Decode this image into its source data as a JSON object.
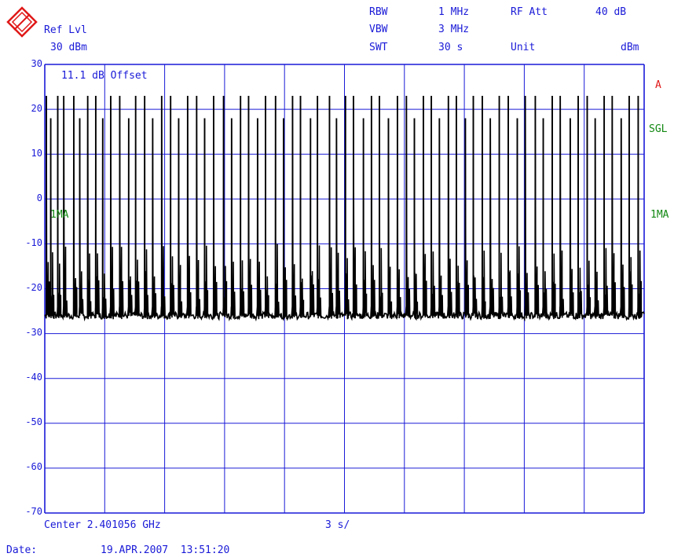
{
  "header": {
    "ref_lvl_label": "Ref Lvl",
    "ref_lvl_value": "30 dBm",
    "rbw_label": "RBW",
    "rbw_value": "1 MHz",
    "vbw_label": "VBW",
    "vbw_value": "3 MHz",
    "swt_label": "SWT",
    "swt_value": "30 s",
    "rf_att_label": "RF Att",
    "rf_att_value": "40 dB",
    "unit_label": "Unit",
    "unit_value": "dBm"
  },
  "annotations": {
    "offset_text": "11.1 dB Offset",
    "trace_label_left": "1MA",
    "trace_label_right": "1MA",
    "marker_a": "A",
    "sgl": "SGL"
  },
  "footer": {
    "center": "Center 2.401056 GHz",
    "sweep_div": "3 s/",
    "date_label": "Date:",
    "date_value": "19.APR.2007  13:51:20"
  },
  "colors": {
    "grid": "#1a1ad8",
    "trace": "#000000",
    "accent_red": "#e01818",
    "accent_green": "#118811"
  },
  "chart_data": {
    "type": "line",
    "title": "",
    "xlabel": "Center 2.401056 GHz",
    "ylabel": "",
    "x_unit": "s",
    "ylim": [
      -70,
      30
    ],
    "xlim": [
      0,
      30
    ],
    "y_ticks": [
      "30",
      "20",
      "10",
      "0",
      "-10",
      "-20",
      "-30",
      "-40",
      "-50",
      "-60",
      "-70"
    ],
    "grid": true,
    "noise_floor_dbm": -26,
    "pulses": [
      {
        "t": 0.08,
        "peak": 23
      },
      {
        "t": 0.3,
        "peak": 18
      },
      {
        "t": 0.65,
        "peak": 23
      },
      {
        "t": 0.95,
        "peak": 23
      },
      {
        "t": 1.45,
        "peak": 23
      },
      {
        "t": 1.75,
        "peak": 18
      },
      {
        "t": 2.15,
        "peak": 23
      },
      {
        "t": 2.55,
        "peak": 23
      },
      {
        "t": 2.9,
        "peak": 18
      },
      {
        "t": 3.3,
        "peak": 23
      },
      {
        "t": 3.75,
        "peak": 23
      },
      {
        "t": 4.2,
        "peak": 18
      },
      {
        "t": 4.55,
        "peak": 23
      },
      {
        "t": 5.0,
        "peak": 23
      },
      {
        "t": 5.4,
        "peak": 18
      },
      {
        "t": 5.85,
        "peak": 23
      },
      {
        "t": 6.3,
        "peak": 23
      },
      {
        "t": 6.7,
        "peak": 18
      },
      {
        "t": 7.15,
        "peak": 23
      },
      {
        "t": 7.6,
        "peak": 23
      },
      {
        "t": 8.0,
        "peak": 18
      },
      {
        "t": 8.45,
        "peak": 23
      },
      {
        "t": 8.95,
        "peak": 23
      },
      {
        "t": 9.35,
        "peak": 18
      },
      {
        "t": 9.8,
        "peak": 23
      },
      {
        "t": 10.2,
        "peak": 23
      },
      {
        "t": 10.65,
        "peak": 18
      },
      {
        "t": 11.05,
        "peak": 23
      },
      {
        "t": 11.55,
        "peak": 23
      },
      {
        "t": 11.95,
        "peak": 18
      },
      {
        "t": 12.4,
        "peak": 23
      },
      {
        "t": 12.8,
        "peak": 23
      },
      {
        "t": 13.3,
        "peak": 18
      },
      {
        "t": 13.65,
        "peak": 23
      },
      {
        "t": 14.25,
        "peak": 23
      },
      {
        "t": 14.6,
        "peak": 18
      },
      {
        "t": 15.05,
        "peak": 23
      },
      {
        "t": 15.45,
        "peak": 23
      },
      {
        "t": 15.95,
        "peak": 18
      },
      {
        "t": 16.35,
        "peak": 23
      },
      {
        "t": 16.75,
        "peak": 23
      },
      {
        "t": 17.2,
        "peak": 18
      },
      {
        "t": 17.65,
        "peak": 23
      },
      {
        "t": 18.1,
        "peak": 23
      },
      {
        "t": 18.5,
        "peak": 18
      },
      {
        "t": 18.95,
        "peak": 23
      },
      {
        "t": 19.35,
        "peak": 23
      },
      {
        "t": 19.75,
        "peak": 18
      },
      {
        "t": 20.2,
        "peak": 23
      },
      {
        "t": 20.6,
        "peak": 23
      },
      {
        "t": 21.05,
        "peak": 18
      },
      {
        "t": 21.45,
        "peak": 23
      },
      {
        "t": 21.9,
        "peak": 23
      },
      {
        "t": 22.3,
        "peak": 18
      },
      {
        "t": 22.75,
        "peak": 23
      },
      {
        "t": 23.2,
        "peak": 23
      },
      {
        "t": 23.65,
        "peak": 18
      },
      {
        "t": 24.05,
        "peak": 23
      },
      {
        "t": 24.55,
        "peak": 23
      },
      {
        "t": 24.95,
        "peak": 18
      },
      {
        "t": 25.4,
        "peak": 23
      },
      {
        "t": 25.8,
        "peak": 23
      },
      {
        "t": 26.3,
        "peak": 18
      },
      {
        "t": 26.7,
        "peak": 23
      },
      {
        "t": 27.15,
        "peak": 23
      },
      {
        "t": 27.55,
        "peak": 18
      },
      {
        "t": 28.0,
        "peak": 23
      },
      {
        "t": 28.4,
        "peak": 23
      },
      {
        "t": 28.85,
        "peak": 18
      },
      {
        "t": 29.25,
        "peak": 23
      },
      {
        "t": 29.7,
        "peak": 23
      }
    ]
  }
}
